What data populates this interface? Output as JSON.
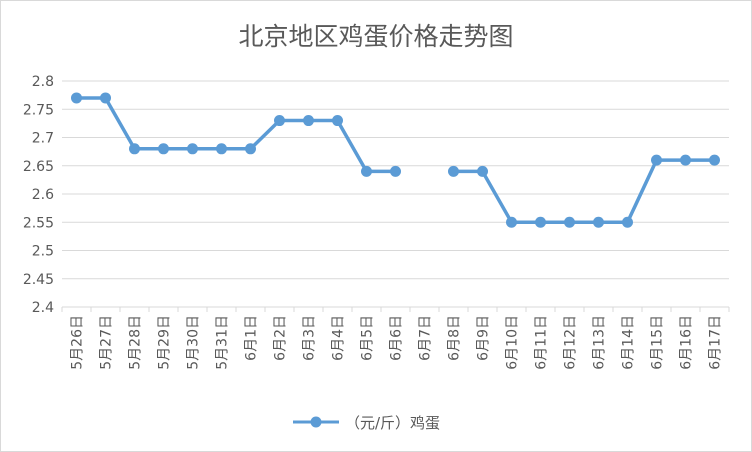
{
  "chart_data": {
    "type": "line",
    "title": "北京地区鸡蛋价格走势图",
    "xlabel": "",
    "ylabel": "",
    "categories": [
      "5月26日",
      "5月27日",
      "5月28日",
      "5月29日",
      "5月30日",
      "5月31日",
      "6月1日",
      "6月2日",
      "6月3日",
      "6月4日",
      "6月5日",
      "6月6日",
      "6月7日",
      "6月8日",
      "6月9日",
      "6月10日",
      "6月11日",
      "6月12日",
      "6月13日",
      "6月14日",
      "6月15日",
      "6月16日",
      "6月17日"
    ],
    "series": [
      {
        "name": "（元/斤）鸡蛋",
        "values": [
          2.77,
          2.77,
          2.68,
          2.68,
          2.68,
          2.68,
          2.68,
          2.73,
          2.73,
          2.73,
          2.64,
          2.64,
          null,
          2.64,
          2.64,
          2.55,
          2.55,
          2.55,
          2.55,
          2.55,
          2.66,
          2.66,
          2.66
        ]
      }
    ],
    "ylim": [
      2.4,
      2.8
    ],
    "yticks": [
      "2.4",
      "2.45",
      "2.5",
      "2.55",
      "2.6",
      "2.65",
      "2.7",
      "2.75",
      "2.8"
    ],
    "grid": true,
    "legend": "bottom",
    "colors": {
      "line": "#5b9bd5",
      "grid": "#d9d9d9",
      "text": "#595959"
    }
  }
}
